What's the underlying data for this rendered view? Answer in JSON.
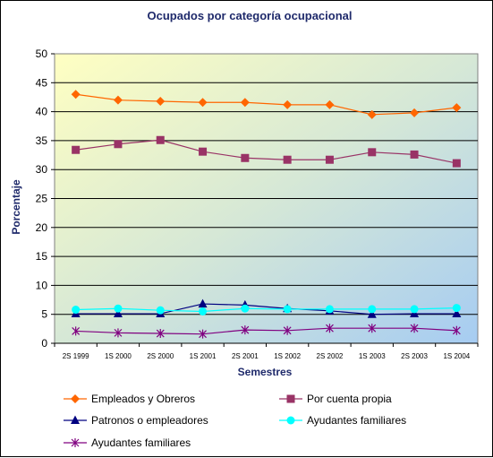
{
  "chart_data": {
    "type": "line",
    "title": "Ocupados por categoría ocupacional",
    "xlabel": "Semestres",
    "ylabel": "Porcentaje",
    "ylim": [
      0,
      50
    ],
    "yticks": [
      0,
      5,
      10,
      15,
      20,
      25,
      30,
      35,
      40,
      45,
      50
    ],
    "grid": true,
    "legend_position": "bottom",
    "categories": [
      "2S 1999",
      "1S 2000",
      "2S 2000",
      "1S 2001",
      "2S 2001",
      "1S 2002",
      "2S 2002",
      "1S 2003",
      "2S 2003",
      "1S 2004"
    ],
    "series": [
      {
        "name": "Empleados y Obreros",
        "color": "#ff6600",
        "marker": "diamond",
        "values": [
          43.0,
          42.0,
          41.8,
          41.6,
          41.6,
          41.2,
          41.2,
          39.5,
          39.8,
          40.7
        ]
      },
      {
        "name": "Por cuenta propia",
        "color": "#993366",
        "marker": "square",
        "values": [
          33.4,
          34.4,
          35.1,
          33.1,
          32.0,
          31.7,
          31.7,
          33.0,
          32.6,
          31.1
        ]
      },
      {
        "name": "Patronos o empleadores",
        "color": "#000080",
        "marker": "triangle",
        "values": [
          5.1,
          5.1,
          5.1,
          6.8,
          6.6,
          6.0,
          5.6,
          5.0,
          5.1,
          5.1
        ]
      },
      {
        "name": "Ayudantes familiares",
        "color": "#00ffff",
        "marker": "circle",
        "values": [
          5.8,
          6.0,
          5.7,
          5.5,
          6.0,
          5.9,
          5.9,
          5.9,
          5.9,
          6.1
        ]
      },
      {
        "name": "Ayudantes familiares",
        "color": "#800080",
        "marker": "star",
        "values": [
          2.1,
          1.8,
          1.7,
          1.6,
          2.3,
          2.2,
          2.6,
          2.6,
          2.6,
          2.2
        ]
      }
    ]
  }
}
